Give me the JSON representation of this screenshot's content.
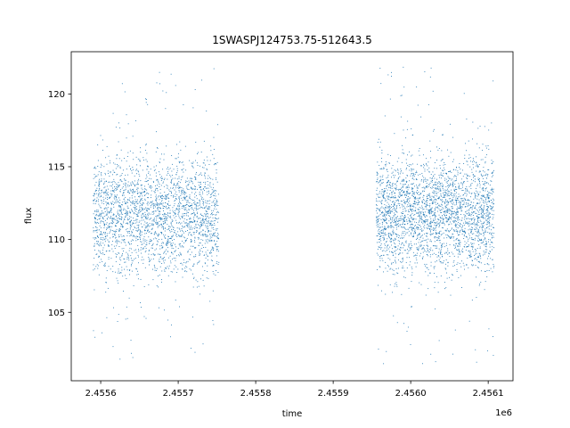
{
  "chart_data": {
    "type": "scatter",
    "title": "1SWASPJ124753.75-512643.5",
    "xlabel": "time",
    "ylabel": "flux",
    "x_offset_label": "1e6",
    "xlim": [
      2455562,
      2456132
    ],
    "ylim": [
      100.3,
      122.9
    ],
    "xticks": [
      2455600,
      2455700,
      2455800,
      2455900,
      2456000,
      2456100
    ],
    "xtick_labels": [
      "2.4556",
      "2.4557",
      "2.4558",
      "2.4559",
      "2.4560",
      "2.4561"
    ],
    "yticks": [
      105,
      110,
      115,
      120
    ],
    "ytick_labels": [
      "105",
      "110",
      "115",
      "120"
    ],
    "grid": false,
    "marker_color": "#1f77b4",
    "series": [
      {
        "segments": [
          {
            "start": 2455590,
            "end": 2455752,
            "low": 107.3,
            "high": 116.0,
            "sparse_low": 101.8,
            "sparse_high": 121.8,
            "count": 2600
          },
          {
            "start": 2455955,
            "end": 2456107,
            "low": 107.5,
            "high": 116.2,
            "sparse_low": 101.2,
            "sparse_high": 121.9,
            "count": 2900
          }
        ]
      }
    ]
  }
}
